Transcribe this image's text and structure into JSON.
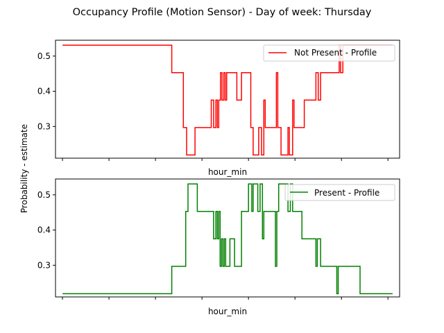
{
  "title": "Occupancy Profile (Motion Sensor) - Day of week: Thursday",
  "ylabel": "Probability - estimate",
  "chart_data": [
    {
      "type": "line",
      "xlabel": "hour_min",
      "ylim": [
        0.21,
        0.545
      ],
      "yticks": [
        "0.3",
        "0.4",
        "0.5"
      ],
      "ytick_values": [
        0.3,
        0.4,
        0.5
      ],
      "x_tick_count": 8,
      "xlim": [
        -0.15,
        7.25
      ],
      "legend": "top-right",
      "series": [
        {
          "name": "Not Present - Profile",
          "color": "#ff0000",
          "points": [
            [
              0.0,
              0.531
            ],
            [
              2.35,
              0.531
            ],
            [
              2.35,
              0.453
            ],
            [
              2.6,
              0.453
            ],
            [
              2.6,
              0.297
            ],
            [
              2.67,
              0.297
            ],
            [
              2.67,
              0.219
            ],
            [
              2.85,
              0.219
            ],
            [
              2.85,
              0.297
            ],
            [
              3.2,
              0.297
            ],
            [
              3.2,
              0.375
            ],
            [
              3.25,
              0.375
            ],
            [
              3.25,
              0.297
            ],
            [
              3.3,
              0.297
            ],
            [
              3.3,
              0.375
            ],
            [
              3.33,
              0.375
            ],
            [
              3.33,
              0.297
            ],
            [
              3.36,
              0.297
            ],
            [
              3.36,
              0.375
            ],
            [
              3.4,
              0.375
            ],
            [
              3.4,
              0.453
            ],
            [
              3.43,
              0.453
            ],
            [
              3.43,
              0.375
            ],
            [
              3.47,
              0.375
            ],
            [
              3.47,
              0.453
            ],
            [
              3.5,
              0.453
            ],
            [
              3.5,
              0.375
            ],
            [
              3.53,
              0.375
            ],
            [
              3.53,
              0.453
            ],
            [
              3.75,
              0.453
            ],
            [
              3.75,
              0.375
            ],
            [
              3.85,
              0.375
            ],
            [
              3.85,
              0.453
            ],
            [
              4.05,
              0.453
            ],
            [
              4.05,
              0.297
            ],
            [
              4.1,
              0.297
            ],
            [
              4.1,
              0.219
            ],
            [
              4.22,
              0.219
            ],
            [
              4.22,
              0.297
            ],
            [
              4.28,
              0.297
            ],
            [
              4.28,
              0.219
            ],
            [
              4.33,
              0.219
            ],
            [
              4.33,
              0.375
            ],
            [
              4.36,
              0.375
            ],
            [
              4.36,
              0.297
            ],
            [
              4.6,
              0.297
            ],
            [
              4.6,
              0.453
            ],
            [
              4.63,
              0.453
            ],
            [
              4.63,
              0.297
            ],
            [
              4.7,
              0.297
            ],
            [
              4.7,
              0.219
            ],
            [
              4.85,
              0.219
            ],
            [
              4.85,
              0.297
            ],
            [
              4.88,
              0.297
            ],
            [
              4.88,
              0.219
            ],
            [
              4.95,
              0.219
            ],
            [
              4.95,
              0.375
            ],
            [
              4.98,
              0.375
            ],
            [
              4.98,
              0.297
            ],
            [
              5.2,
              0.297
            ],
            [
              5.2,
              0.375
            ],
            [
              5.45,
              0.375
            ],
            [
              5.45,
              0.453
            ],
            [
              5.5,
              0.453
            ],
            [
              5.5,
              0.375
            ],
            [
              5.55,
              0.375
            ],
            [
              5.55,
              0.453
            ],
            [
              5.95,
              0.453
            ],
            [
              5.95,
              0.531
            ],
            [
              5.98,
              0.531
            ],
            [
              5.98,
              0.453
            ],
            [
              6.03,
              0.453
            ],
            [
              6.03,
              0.531
            ],
            [
              7.1,
              0.531
            ]
          ]
        },
        {
          "name": "Present - Profile",
          "color": "#008000",
          "points": [
            [
              0.0,
              0.219
            ],
            [
              2.35,
              0.219
            ],
            [
              2.35,
              0.297
            ],
            [
              2.65,
              0.297
            ],
            [
              2.65,
              0.453
            ],
            [
              2.7,
              0.453
            ],
            [
              2.7,
              0.531
            ],
            [
              2.9,
              0.531
            ],
            [
              2.9,
              0.453
            ],
            [
              3.25,
              0.453
            ],
            [
              3.25,
              0.375
            ],
            [
              3.3,
              0.375
            ],
            [
              3.3,
              0.453
            ],
            [
              3.33,
              0.453
            ],
            [
              3.33,
              0.375
            ],
            [
              3.36,
              0.375
            ],
            [
              3.36,
              0.453
            ],
            [
              3.39,
              0.453
            ],
            [
              3.39,
              0.297
            ],
            [
              3.42,
              0.297
            ],
            [
              3.42,
              0.375
            ],
            [
              3.45,
              0.375
            ],
            [
              3.45,
              0.297
            ],
            [
              3.48,
              0.297
            ],
            [
              3.48,
              0.375
            ],
            [
              3.51,
              0.375
            ],
            [
              3.51,
              0.297
            ],
            [
              3.6,
              0.297
            ],
            [
              3.6,
              0.375
            ],
            [
              3.7,
              0.375
            ],
            [
              3.7,
              0.297
            ],
            [
              3.85,
              0.297
            ],
            [
              3.85,
              0.453
            ],
            [
              4.0,
              0.453
            ],
            [
              4.0,
              0.531
            ],
            [
              4.07,
              0.531
            ],
            [
              4.07,
              0.453
            ],
            [
              4.1,
              0.453
            ],
            [
              4.1,
              0.531
            ],
            [
              4.2,
              0.531
            ],
            [
              4.2,
              0.453
            ],
            [
              4.25,
              0.453
            ],
            [
              4.25,
              0.531
            ],
            [
              4.3,
              0.531
            ],
            [
              4.3,
              0.375
            ],
            [
              4.33,
              0.375
            ],
            [
              4.33,
              0.453
            ],
            [
              4.58,
              0.453
            ],
            [
              4.58,
              0.297
            ],
            [
              4.61,
              0.297
            ],
            [
              4.61,
              0.453
            ],
            [
              4.65,
              0.453
            ],
            [
              4.65,
              0.531
            ],
            [
              4.85,
              0.531
            ],
            [
              4.85,
              0.453
            ],
            [
              4.9,
              0.453
            ],
            [
              4.9,
              0.531
            ],
            [
              4.95,
              0.531
            ],
            [
              4.95,
              0.453
            ],
            [
              5.15,
              0.453
            ],
            [
              5.15,
              0.375
            ],
            [
              5.45,
              0.375
            ],
            [
              5.45,
              0.297
            ],
            [
              5.48,
              0.297
            ],
            [
              5.48,
              0.375
            ],
            [
              5.55,
              0.375
            ],
            [
              5.55,
              0.297
            ],
            [
              5.9,
              0.297
            ],
            [
              5.9,
              0.219
            ],
            [
              5.93,
              0.219
            ],
            [
              5.93,
              0.297
            ],
            [
              6.4,
              0.297
            ],
            [
              6.4,
              0.219
            ],
            [
              7.1,
              0.219
            ]
          ]
        }
      ]
    }
  ]
}
